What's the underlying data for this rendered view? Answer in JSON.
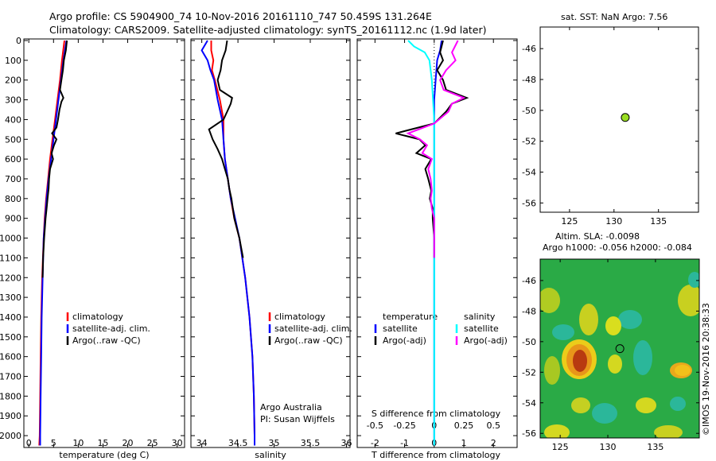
{
  "header": {
    "line1": "Argo profile: CS 5904900_74 10-Nov-2016 20161110_747 50.459S 131.264E",
    "line2": "Climatology: CARS2009. Satellite-adjusted climatology: synTS_20161112.nc (1.9d later)"
  },
  "side": {
    "credit": "©IMOS 19-Nov-2016 20:38:33"
  },
  "colors": {
    "climatology": "#ff0000",
    "satellite": "#0000ff",
    "argo": "#000000",
    "salinity_satellite": "#00ffff",
    "salinity_argo": "#ff00ff",
    "marker": "#99dd22"
  },
  "chart_data": [
    {
      "type": "line",
      "panel": "temperature",
      "xlabel": "temperature (deg C)",
      "ylabel": "",
      "xlim": [
        -1,
        31.5
      ],
      "ylim": [
        2060,
        0
      ],
      "xticks": [
        "0",
        "5",
        "10",
        "15",
        "20",
        "25",
        "30"
      ],
      "yticks": [
        "0",
        "100",
        "200",
        "300",
        "400",
        "500",
        "600",
        "700",
        "800",
        "900",
        "1000",
        "1100",
        "1200",
        "1300",
        "1400",
        "1500",
        "1600",
        "1700",
        "1800",
        "1900",
        "2000"
      ],
      "legend": [
        "climatology",
        "satellite-adj. clim.",
        "Argo(..raw -QC)"
      ],
      "series": [
        {
          "name": "climatology",
          "color": "#ff0000",
          "depth": [
            0,
            100,
            200,
            300,
            400,
            500,
            600,
            700,
            800,
            900,
            1000,
            1200,
            1400,
            1600,
            1800,
            2000,
            2050
          ],
          "values": [
            7.2,
            6.7,
            6.3,
            5.8,
            5.3,
            4.8,
            4.3,
            3.9,
            3.5,
            3.2,
            3.0,
            2.7,
            2.5,
            2.4,
            2.3,
            2.2,
            2.1
          ]
        },
        {
          "name": "satellite-adj. clim.",
          "color": "#0000ff",
          "depth": [
            0,
            100,
            200,
            300,
            400,
            500,
            600,
            700,
            800,
            900,
            1000,
            1200,
            1400,
            1600,
            1800,
            2000,
            2050
          ],
          "values": [
            7.6,
            7.0,
            6.5,
            6.0,
            5.5,
            5.0,
            4.5,
            4.0,
            3.6,
            3.3,
            3.0,
            2.8,
            2.6,
            2.5,
            2.4,
            2.3,
            2.3
          ]
        },
        {
          "name": "Argo(..raw -QC)",
          "color": "#000000",
          "depth": [
            0,
            50,
            100,
            150,
            200,
            250,
            290,
            310,
            350,
            400,
            440,
            470,
            500,
            530,
            570,
            600,
            650,
            700,
            750,
            800,
            850,
            900,
            1000,
            1100,
            1200
          ],
          "values": [
            7.7,
            7.5,
            7.1,
            6.9,
            6.6,
            6.3,
            7.0,
            6.6,
            6.2,
            5.9,
            5.6,
            4.7,
            5.6,
            5.1,
            4.6,
            4.9,
            4.3,
            4.1,
            4.0,
            3.8,
            3.6,
            3.4,
            3.1,
            2.9,
            2.8
          ]
        }
      ]
    },
    {
      "type": "line",
      "panel": "salinity",
      "xlabel": "salinity",
      "ylabel": "",
      "xlim": [
        33.85,
        36.05
      ],
      "ylim": [
        2060,
        0
      ],
      "xticks": [
        "34",
        "34.5",
        "35",
        "35.5",
        "36"
      ],
      "legend": [
        "climatology",
        "satellite-adj. clim.",
        "Argo(..raw -QC)"
      ],
      "annotations": [
        "Argo Australia",
        "PI: Susan Wijffels"
      ],
      "series": [
        {
          "name": "climatology",
          "color": "#ff0000",
          "depth": [
            0,
            50,
            100,
            150,
            200,
            300,
            400,
            500,
            600,
            700,
            800,
            900,
            1000,
            1200,
            1400,
            1600,
            1800,
            2000,
            2050
          ],
          "values": [
            34.13,
            34.13,
            34.16,
            34.14,
            34.18,
            34.25,
            34.3,
            34.3,
            34.32,
            34.36,
            34.4,
            34.45,
            34.52,
            34.6,
            34.66,
            34.7,
            34.72,
            34.73,
            34.73
          ]
        },
        {
          "name": "satellite-adj. clim.",
          "color": "#0000ff",
          "depth": [
            0,
            50,
            100,
            150,
            200,
            300,
            400,
            500,
            600,
            700,
            800,
            900,
            1000,
            1200,
            1400,
            1600,
            1800,
            2000,
            2050
          ],
          "values": [
            34.08,
            34.0,
            34.08,
            34.12,
            34.17,
            34.22,
            34.28,
            34.3,
            34.32,
            34.36,
            34.4,
            34.46,
            34.52,
            34.6,
            34.66,
            34.7,
            34.72,
            34.73,
            34.73
          ]
        },
        {
          "name": "Argo(..raw -QC)",
          "color": "#000000",
          "depth": [
            0,
            50,
            100,
            150,
            200,
            250,
            290,
            320,
            360,
            400,
            450,
            500,
            550,
            600,
            650,
            700,
            750,
            800,
            850,
            900,
            1000,
            1100
          ],
          "values": [
            34.35,
            34.33,
            34.28,
            34.26,
            34.22,
            34.25,
            34.42,
            34.4,
            34.35,
            34.3,
            34.1,
            34.15,
            34.22,
            34.28,
            34.32,
            34.36,
            34.38,
            34.41,
            34.43,
            34.45,
            34.52,
            34.57
          ]
        }
      ]
    },
    {
      "type": "line",
      "panel": "difference",
      "xlabel": "T difference from climatology",
      "xlabel_top": "S difference from climatology",
      "xlim": [
        -2.6,
        2.8
      ],
      "ylim": [
        2060,
        0
      ],
      "xticks": [
        "-2",
        "-1",
        "0",
        "1",
        "2"
      ],
      "xticks_top": [
        "-0.5",
        "-0.25",
        "0",
        "0.25",
        "0.5"
      ],
      "legend_headers": [
        "temperature",
        "salinity"
      ],
      "legend": [
        "satellite",
        "Argo(-adj)",
        "satellite",
        "Argo(-adj)"
      ],
      "series": [
        {
          "name": "temperature satellite",
          "color": "#0000ff",
          "depth": [
            0,
            50,
            100,
            200,
            300,
            400,
            500,
            600,
            800,
            1000,
            1200,
            1400,
            1600,
            1800,
            2000,
            2050
          ],
          "values": [
            0.25,
            0.2,
            0.1,
            0.05,
            0.0,
            0.0,
            0.0,
            0.0,
            0.0,
            0.0,
            0.0,
            0.0,
            0.0,
            0.0,
            0.0,
            0.0
          ]
        },
        {
          "name": "temperature Argo(-adj)",
          "color": "#000000",
          "depth": [
            0,
            60,
            100,
            150,
            200,
            250,
            290,
            320,
            360,
            420,
            470,
            500,
            530,
            570,
            600,
            650,
            700,
            760,
            800,
            850,
            900,
            1000,
            1100
          ],
          "values": [
            0.3,
            0.2,
            0.3,
            0.1,
            0.3,
            0.4,
            1.1,
            0.6,
            0.4,
            0.0,
            -1.3,
            -0.5,
            -0.3,
            -0.6,
            -0.1,
            -0.3,
            -0.2,
            -0.1,
            -0.15,
            -0.05,
            -0.05,
            0.0,
            0.0
          ]
        },
        {
          "name": "salinity satellite",
          "color": "#00ffff",
          "depth": [
            0,
            30,
            60,
            100,
            200,
            300,
            400,
            500,
            600,
            800,
            1000,
            1200,
            1400,
            1600,
            1800,
            2000,
            2050
          ],
          "values": [
            -0.22,
            -0.17,
            -0.08,
            -0.04,
            -0.02,
            -0.01,
            0.0,
            0.0,
            0.0,
            0.0,
            0.0,
            0.0,
            0.0,
            0.0,
            0.0,
            0.0,
            0.0
          ]
        },
        {
          "name": "salinity Argo(-adj)",
          "color": "#ff00ff",
          "depth": [
            0,
            60,
            100,
            150,
            200,
            250,
            290,
            320,
            360,
            420,
            470,
            500,
            530,
            570,
            600,
            650,
            700,
            760,
            800,
            850,
            900,
            1000,
            1100
          ],
          "values": [
            0.2,
            0.15,
            0.18,
            0.1,
            0.05,
            0.08,
            0.25,
            0.15,
            0.12,
            0.0,
            -0.22,
            -0.12,
            -0.06,
            -0.1,
            -0.02,
            -0.05,
            -0.03,
            -0.02,
            -0.03,
            -0.02,
            0.0,
            0.0,
            0.0
          ]
        }
      ]
    },
    {
      "type": "scatter",
      "panel": "sst_map",
      "title": "sat. SST: NaN Argo: 7.56",
      "xlim": [
        121.7,
        139.5
      ],
      "ylim": [
        -56.6,
        -44.6
      ],
      "xticks": [
        "125",
        "130",
        "135"
      ],
      "yticks": [
        "-46",
        "-48",
        "-50",
        "-52",
        "-54",
        "-56"
      ],
      "x": [
        131.264
      ],
      "y": [
        -50.459
      ]
    },
    {
      "type": "heatmap",
      "panel": "sla_map",
      "title_line1": "Altim. SLA: -0.0098",
      "title_line2": "Argo h1000: -0.056 h2000: -0.084",
      "xlim": [
        122.9,
        139.6
      ],
      "ylim": [
        -56.3,
        -44.6
      ],
      "xticks": [
        "125",
        "130",
        "135"
      ],
      "yticks": [
        "-46",
        "-48",
        "-50",
        "-52",
        "-54",
        "-56"
      ],
      "x": [
        131.264
      ],
      "y": [
        -50.459
      ]
    }
  ]
}
